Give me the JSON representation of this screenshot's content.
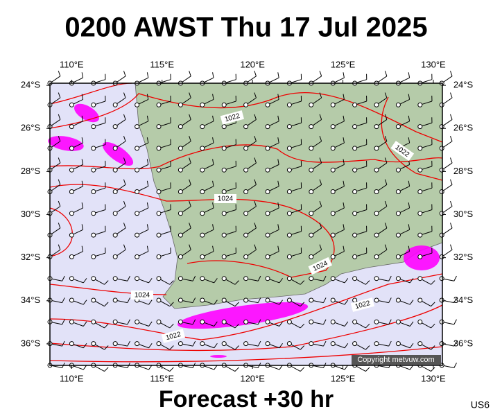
{
  "title": "0200 AWST Thu 17 Jul 2025",
  "subtitle": "Forecast +30 hr",
  "model": "US6",
  "copyright": "Copyright metvuw.com",
  "map": {
    "xlim": [
      108.8,
      130.5
    ],
    "ylim": [
      -37,
      -23.9
    ],
    "xticks": [
      {
        "value": 110,
        "label": "110°E"
      },
      {
        "value": 115,
        "label": "115°E"
      },
      {
        "value": 120,
        "label": "120°E"
      },
      {
        "value": 125,
        "label": "125°E"
      },
      {
        "value": 130,
        "label": "130°E"
      }
    ],
    "yticks": [
      {
        "value": -24,
        "label": "24°S"
      },
      {
        "value": -26,
        "label": "26°S"
      },
      {
        "value": -28,
        "label": "28°S"
      },
      {
        "value": -30,
        "label": "30°S"
      },
      {
        "value": -32,
        "label": "32°S"
      },
      {
        "value": -34,
        "label": "34°S"
      },
      {
        "value": -36,
        "label": "36°S"
      }
    ]
  },
  "isobar_labels": [
    "1022",
    "1022",
    "1024",
    "1024",
    "1024",
    "1022",
    "1022"
  ]
}
